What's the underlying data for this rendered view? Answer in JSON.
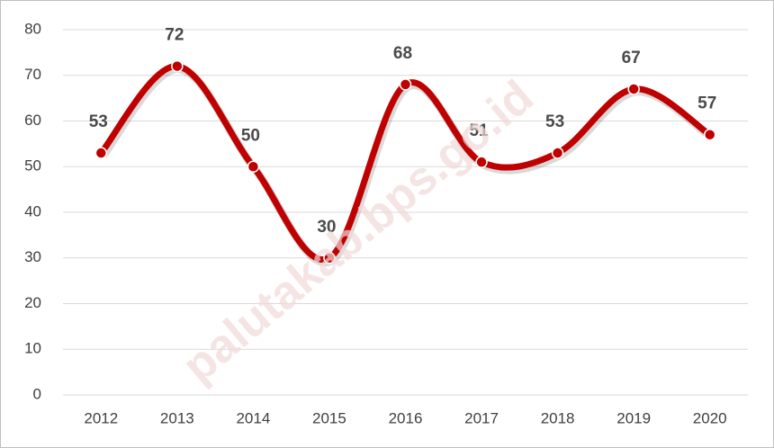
{
  "chart_data": {
    "type": "line",
    "categories": [
      "2012",
      "2013",
      "2014",
      "2015",
      "2016",
      "2017",
      "2018",
      "2019",
      "2020"
    ],
    "values": [
      53,
      72,
      50,
      30,
      68,
      51,
      53,
      67,
      57
    ],
    "color": "#c00000",
    "ylim": [
      0,
      80
    ],
    "yticks": [
      0,
      10,
      20,
      30,
      40,
      50,
      60,
      70,
      80
    ],
    "grid": true,
    "smooth": true,
    "watermark": "palutakab.bps.go.id"
  }
}
